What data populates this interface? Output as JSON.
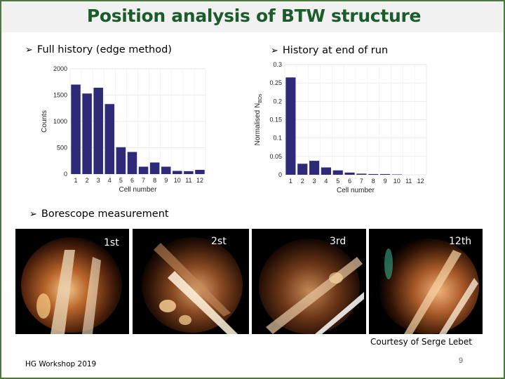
{
  "title": "Position analysis of BTW structure",
  "bullets": {
    "full_history": "Full history (edge method)",
    "end_of_run": "History at end of run",
    "borescope": "Borescope measurement"
  },
  "chart_data": [
    {
      "type": "bar",
      "title": "",
      "xlabel": "Cell number",
      "ylabel": "Counts",
      "categories": [
        "1",
        "2",
        "3",
        "4",
        "5",
        "6",
        "7",
        "8",
        "9",
        "10",
        "11",
        "12"
      ],
      "values": [
        1700,
        1530,
        1640,
        1330,
        510,
        420,
        140,
        220,
        140,
        60,
        55,
        80
      ],
      "ylim": [
        0,
        2000
      ],
      "yticks": [
        "0",
        "500",
        "1000",
        "1500",
        "2000"
      ],
      "grid": true,
      "bar_color": "#2e2a78"
    },
    {
      "type": "bar",
      "title": "",
      "xlabel": "Cell number",
      "ylabel": "Normalised N_BDs",
      "categories": [
        "1",
        "2",
        "3",
        "4",
        "5",
        "6",
        "7",
        "8",
        "9",
        "10",
        "11",
        "12"
      ],
      "values": [
        0.265,
        0.03,
        0.038,
        0.02,
        0.012,
        0.006,
        0.003,
        0.002,
        0.002,
        0.001,
        0.0,
        0.0
      ],
      "ylim": [
        0,
        0.3
      ],
      "yticks": [
        "0",
        "0.05",
        "0.1",
        "0.15",
        "0.2",
        "0.25",
        "0.3"
      ],
      "grid": true,
      "bar_color": "#2e2a78"
    }
  ],
  "photos": [
    {
      "label": "1st"
    },
    {
      "label": "2st"
    },
    {
      "label": "3rd"
    },
    {
      "label": "12th"
    }
  ],
  "courtesy": "Courtesy of Serge Lebet",
  "footer_left": "HG Workshop 2019",
  "page_number": "9",
  "colors": {
    "title": "#1a5c2a",
    "frame": "#4a7a3a",
    "bars": "#2e2a78"
  }
}
